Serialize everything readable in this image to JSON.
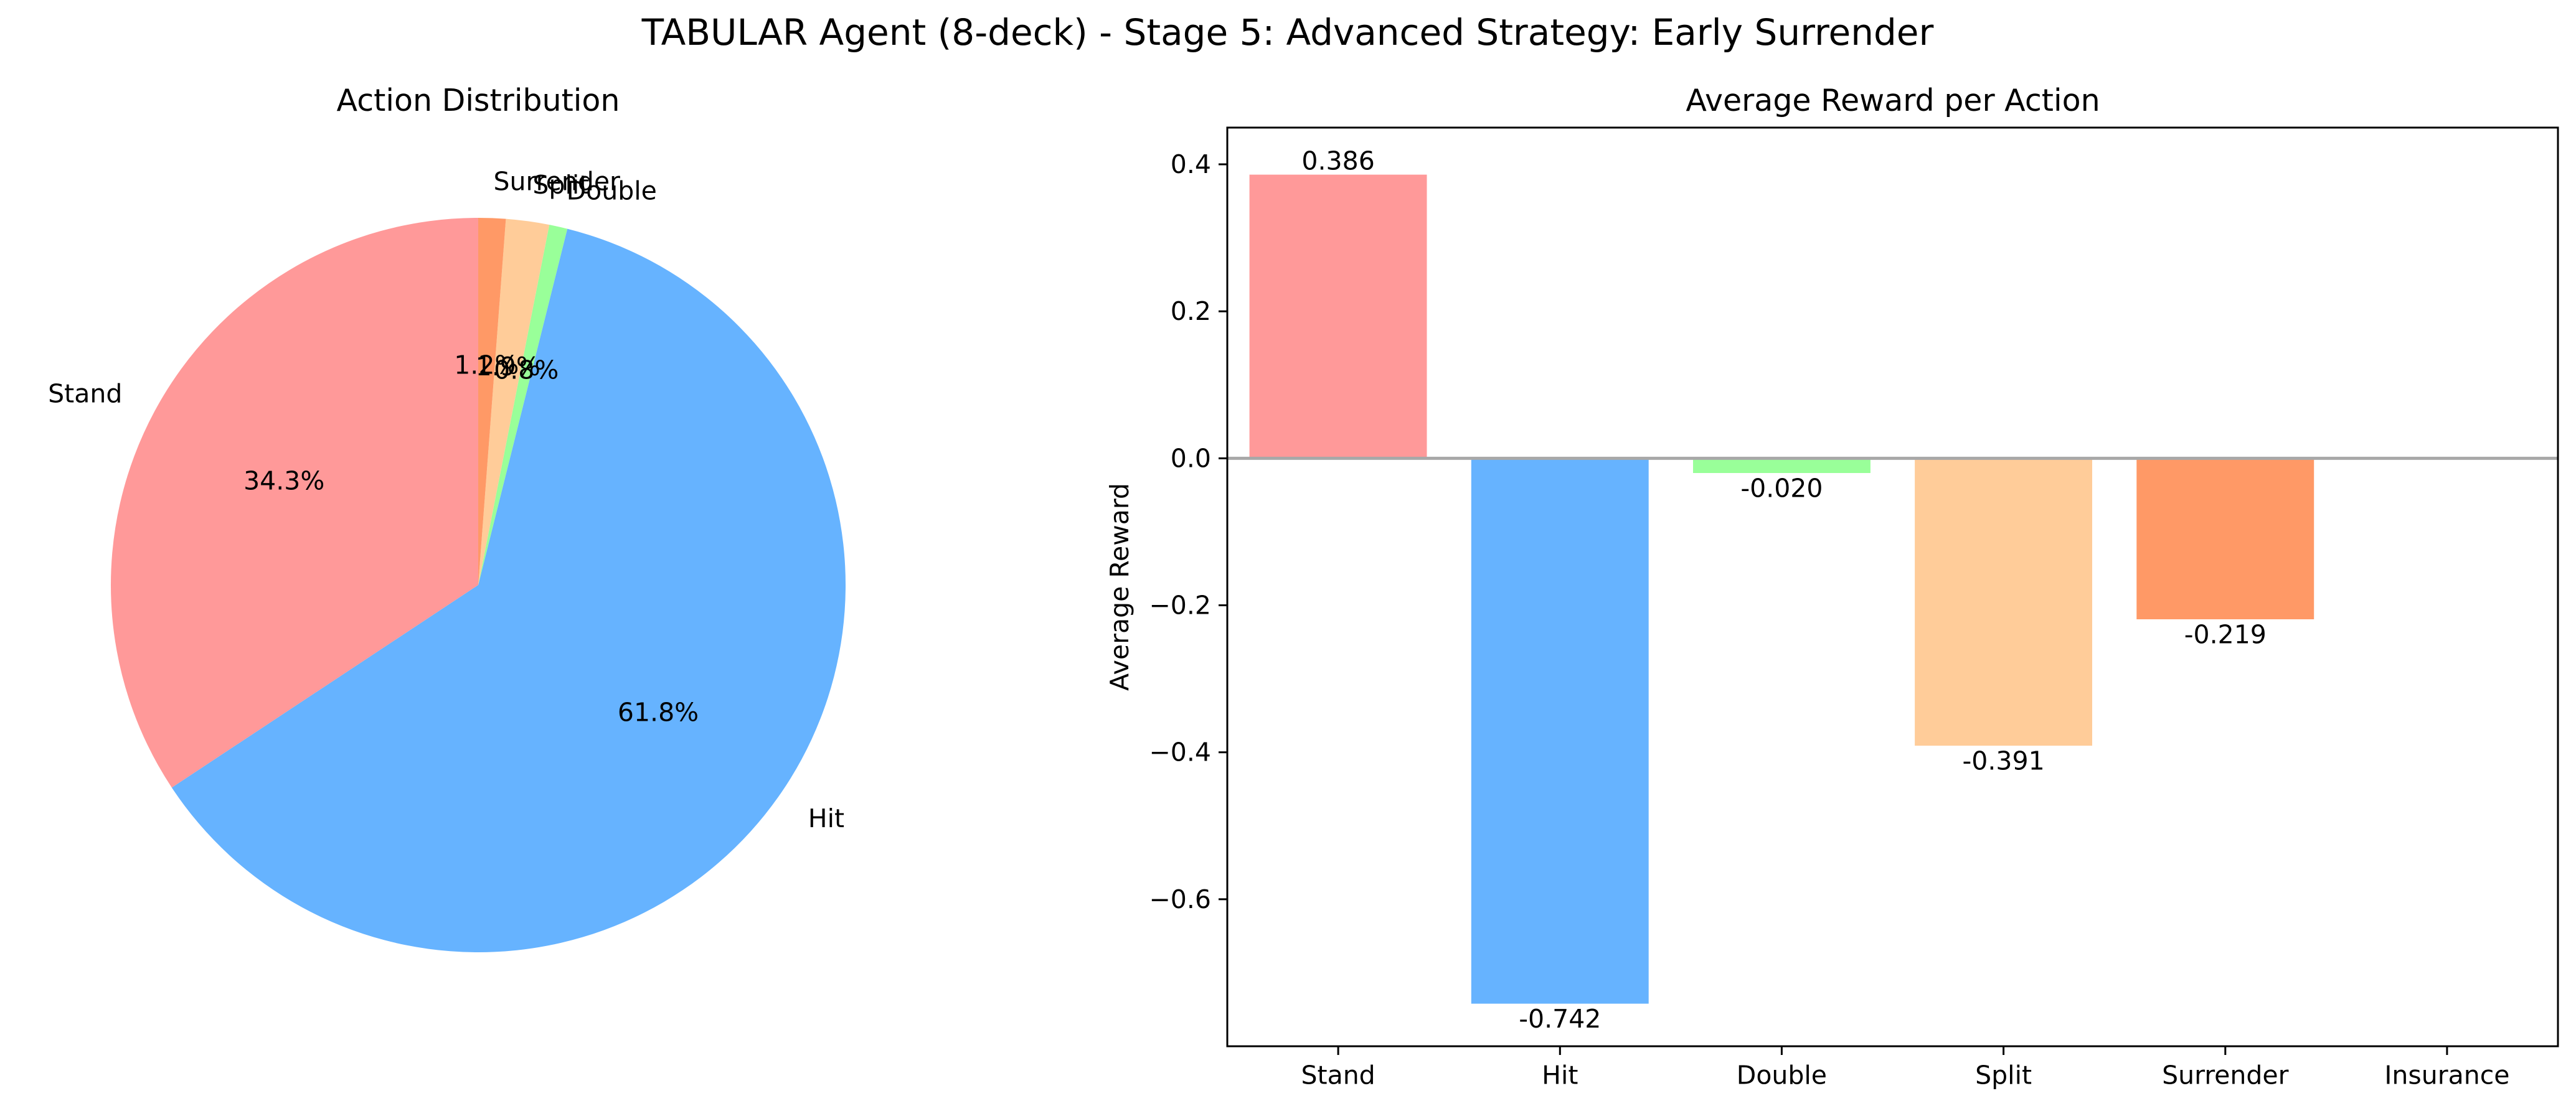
{
  "figure": {
    "title": "TABULAR Agent (8-deck) - Stage 5: Advanced Strategy: Early Surrender"
  },
  "chart_data": [
    {
      "type": "pie",
      "title": "Action Distribution",
      "start_angle_deg": 90,
      "direction": "counterclockwise",
      "slices": [
        {
          "label": "Stand",
          "value": 34.3,
          "pct_label": "34.3%",
          "color": "#ff9999"
        },
        {
          "label": "Hit",
          "value": 61.8,
          "pct_label": "61.8%",
          "color": "#66b3ff"
        },
        {
          "label": "Double",
          "value": 0.8,
          "pct_label": "0.8%",
          "color": "#99ff99"
        },
        {
          "label": "Split",
          "value": 1.9,
          "pct_label": "1.9%",
          "color": "#ffcc99"
        },
        {
          "label": "Surrender",
          "value": 1.2,
          "pct_label": "1.2%",
          "color": "#ff9966"
        }
      ]
    },
    {
      "type": "bar",
      "title": "Average Reward per Action",
      "xlabel": "",
      "ylabel": "Average Reward",
      "categories": [
        "Stand",
        "Hit",
        "Double",
        "Split",
        "Surrender",
        "Insurance"
      ],
      "values": [
        0.386,
        -0.742,
        -0.02,
        -0.391,
        -0.219,
        null
      ],
      "value_labels": [
        "0.386",
        "-0.742",
        "-0.020",
        "-0.391",
        "-0.219",
        ""
      ],
      "colors": [
        "#ff9999",
        "#66b3ff",
        "#99ff99",
        "#ffcc99",
        "#ff9966",
        "#c2c2f0"
      ],
      "ylim": [
        -0.8,
        0.45
      ],
      "yticks": [
        0.4,
        0.2,
        0.0,
        -0.2,
        -0.4,
        -0.6
      ],
      "ytick_labels": [
        "0.4",
        "0.2",
        "0.0",
        "−0.2",
        "−0.4",
        "−0.6"
      ],
      "zero_line": true,
      "grid": false
    }
  ]
}
